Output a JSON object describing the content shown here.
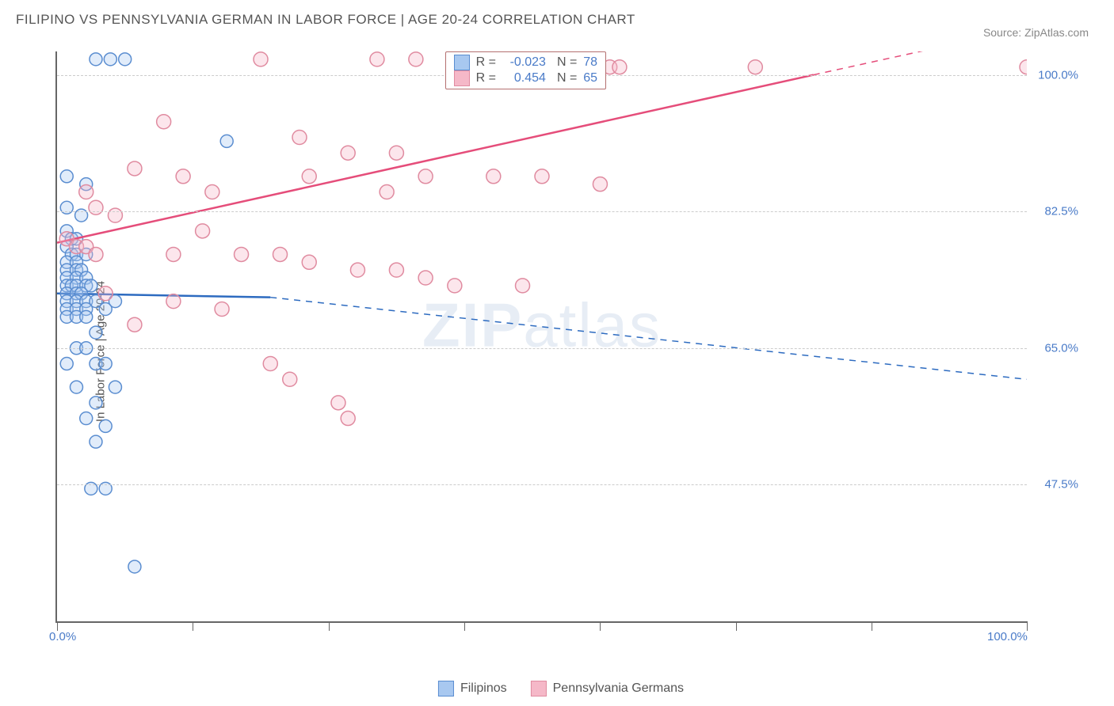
{
  "title": "FILIPINO VS PENNSYLVANIA GERMAN IN LABOR FORCE | AGE 20-24 CORRELATION CHART",
  "source": "Source: ZipAtlas.com",
  "yAxisTitle": "In Labor Force | Age 20-24",
  "watermark_a": "ZIP",
  "watermark_b": "atlas",
  "chart": {
    "type": "scatter",
    "xlim": [
      0,
      100
    ],
    "ylim": [
      30,
      103
    ],
    "xticks": [
      0,
      14,
      28,
      42,
      56,
      70,
      84,
      100
    ],
    "xticklabels": {
      "0": "0.0%",
      "100": "100.0%"
    },
    "yticks": [
      47.5,
      65.0,
      82.5,
      100.0
    ],
    "yticklabels": [
      "47.5%",
      "65.0%",
      "82.5%",
      "100.0%"
    ],
    "grid_color": "#cccccc",
    "axis_color": "#666666",
    "background_color": "#ffffff",
    "label_color": "#4a7bc8",
    "label_fontsize": 15
  },
  "series": [
    {
      "name": "Filipinos",
      "color_fill": "#a8c8f0",
      "color_stroke": "#5a8dd0",
      "marker_radius": 8,
      "R": "-0.023",
      "N": "78",
      "regression": {
        "x1": 0,
        "y1": 72,
        "x2_solid": 22,
        "y2_solid": 71.5,
        "x2_dash": 100,
        "y2_dash": 61,
        "stroke": "#2d6bc0",
        "stroke_width": 2.5
      },
      "points": [
        [
          4,
          102
        ],
        [
          5.5,
          102
        ],
        [
          7,
          102
        ],
        [
          1,
          87
        ],
        [
          3,
          86
        ],
        [
          1,
          83
        ],
        [
          2.5,
          82
        ],
        [
          1,
          80
        ],
        [
          1.5,
          79
        ],
        [
          2,
          79
        ],
        [
          1,
          78
        ],
        [
          1.5,
          77
        ],
        [
          2,
          77
        ],
        [
          3,
          77
        ],
        [
          1,
          76
        ],
        [
          2,
          76
        ],
        [
          1,
          75
        ],
        [
          2,
          75
        ],
        [
          2.5,
          75
        ],
        [
          1,
          74
        ],
        [
          2,
          74
        ],
        [
          3,
          74
        ],
        [
          1,
          73
        ],
        [
          1.5,
          73
        ],
        [
          2,
          73
        ],
        [
          3,
          73
        ],
        [
          3.5,
          73
        ],
        [
          1,
          72
        ],
        [
          2,
          72
        ],
        [
          2.5,
          72
        ],
        [
          1,
          71
        ],
        [
          2,
          71
        ],
        [
          3,
          71
        ],
        [
          4,
          71
        ],
        [
          1,
          70
        ],
        [
          2,
          70
        ],
        [
          3,
          70
        ],
        [
          1,
          69
        ],
        [
          2,
          69
        ],
        [
          3,
          69
        ],
        [
          5,
          70
        ],
        [
          6,
          71
        ],
        [
          17.5,
          91.5
        ],
        [
          4,
          67
        ],
        [
          2,
          65
        ],
        [
          3,
          65
        ],
        [
          1,
          63
        ],
        [
          4,
          63
        ],
        [
          5,
          63
        ],
        [
          2,
          60
        ],
        [
          6,
          60
        ],
        [
          4,
          58
        ],
        [
          3,
          56
        ],
        [
          5,
          55
        ],
        [
          4,
          53
        ],
        [
          3.5,
          47
        ],
        [
          5,
          47
        ],
        [
          8,
          37
        ]
      ]
    },
    {
      "name": "Pennsylvania Germans",
      "color_fill": "#f5b8c8",
      "color_stroke": "#e08ba0",
      "marker_radius": 9,
      "R": "0.454",
      "N": "65",
      "regression": {
        "x1": 0,
        "y1": 78.5,
        "x2_solid": 78,
        "y2_solid": 100,
        "x2_dash": 100,
        "y2_dash": 106,
        "stroke": "#e54d7a",
        "stroke_width": 2.5
      },
      "points": [
        [
          21,
          102
        ],
        [
          33,
          102
        ],
        [
          37,
          102
        ],
        [
          44,
          101
        ],
        [
          49,
          101
        ],
        [
          55,
          101
        ],
        [
          57,
          101
        ],
        [
          58,
          101
        ],
        [
          72,
          101
        ],
        [
          100,
          101
        ],
        [
          11,
          94
        ],
        [
          25,
          92
        ],
        [
          30,
          90
        ],
        [
          35,
          90
        ],
        [
          8,
          88
        ],
        [
          13,
          87
        ],
        [
          26,
          87
        ],
        [
          38,
          87
        ],
        [
          45,
          87
        ],
        [
          50,
          87
        ],
        [
          56,
          86
        ],
        [
          3,
          85
        ],
        [
          16,
          85
        ],
        [
          34,
          85
        ],
        [
          4,
          83
        ],
        [
          6,
          82
        ],
        [
          15,
          80
        ],
        [
          1,
          79
        ],
        [
          2,
          78
        ],
        [
          3,
          78
        ],
        [
          4,
          77
        ],
        [
          12,
          77
        ],
        [
          19,
          77
        ],
        [
          23,
          77
        ],
        [
          26,
          76
        ],
        [
          31,
          75
        ],
        [
          35,
          75
        ],
        [
          38,
          74
        ],
        [
          41,
          73
        ],
        [
          48,
          73
        ],
        [
          5,
          72
        ],
        [
          12,
          71
        ],
        [
          17,
          70
        ],
        [
          8,
          68
        ],
        [
          22,
          63
        ],
        [
          24,
          61
        ],
        [
          29,
          58
        ],
        [
          30,
          56
        ]
      ]
    }
  ],
  "legendTop": [
    {
      "sq_fill": "#a8c8f0",
      "sq_stroke": "#5a8dd0",
      "R": "-0.023",
      "N": "78"
    },
    {
      "sq_fill": "#f5b8c8",
      "sq_stroke": "#e08ba0",
      "R": "0.454",
      "N": "65"
    }
  ],
  "legendBottom": [
    {
      "sq_fill": "#a8c8f0",
      "sq_stroke": "#5a8dd0",
      "label": "Filipinos"
    },
    {
      "sq_fill": "#f5b8c8",
      "sq_stroke": "#e08ba0",
      "label": "Pennsylvania Germans"
    }
  ]
}
